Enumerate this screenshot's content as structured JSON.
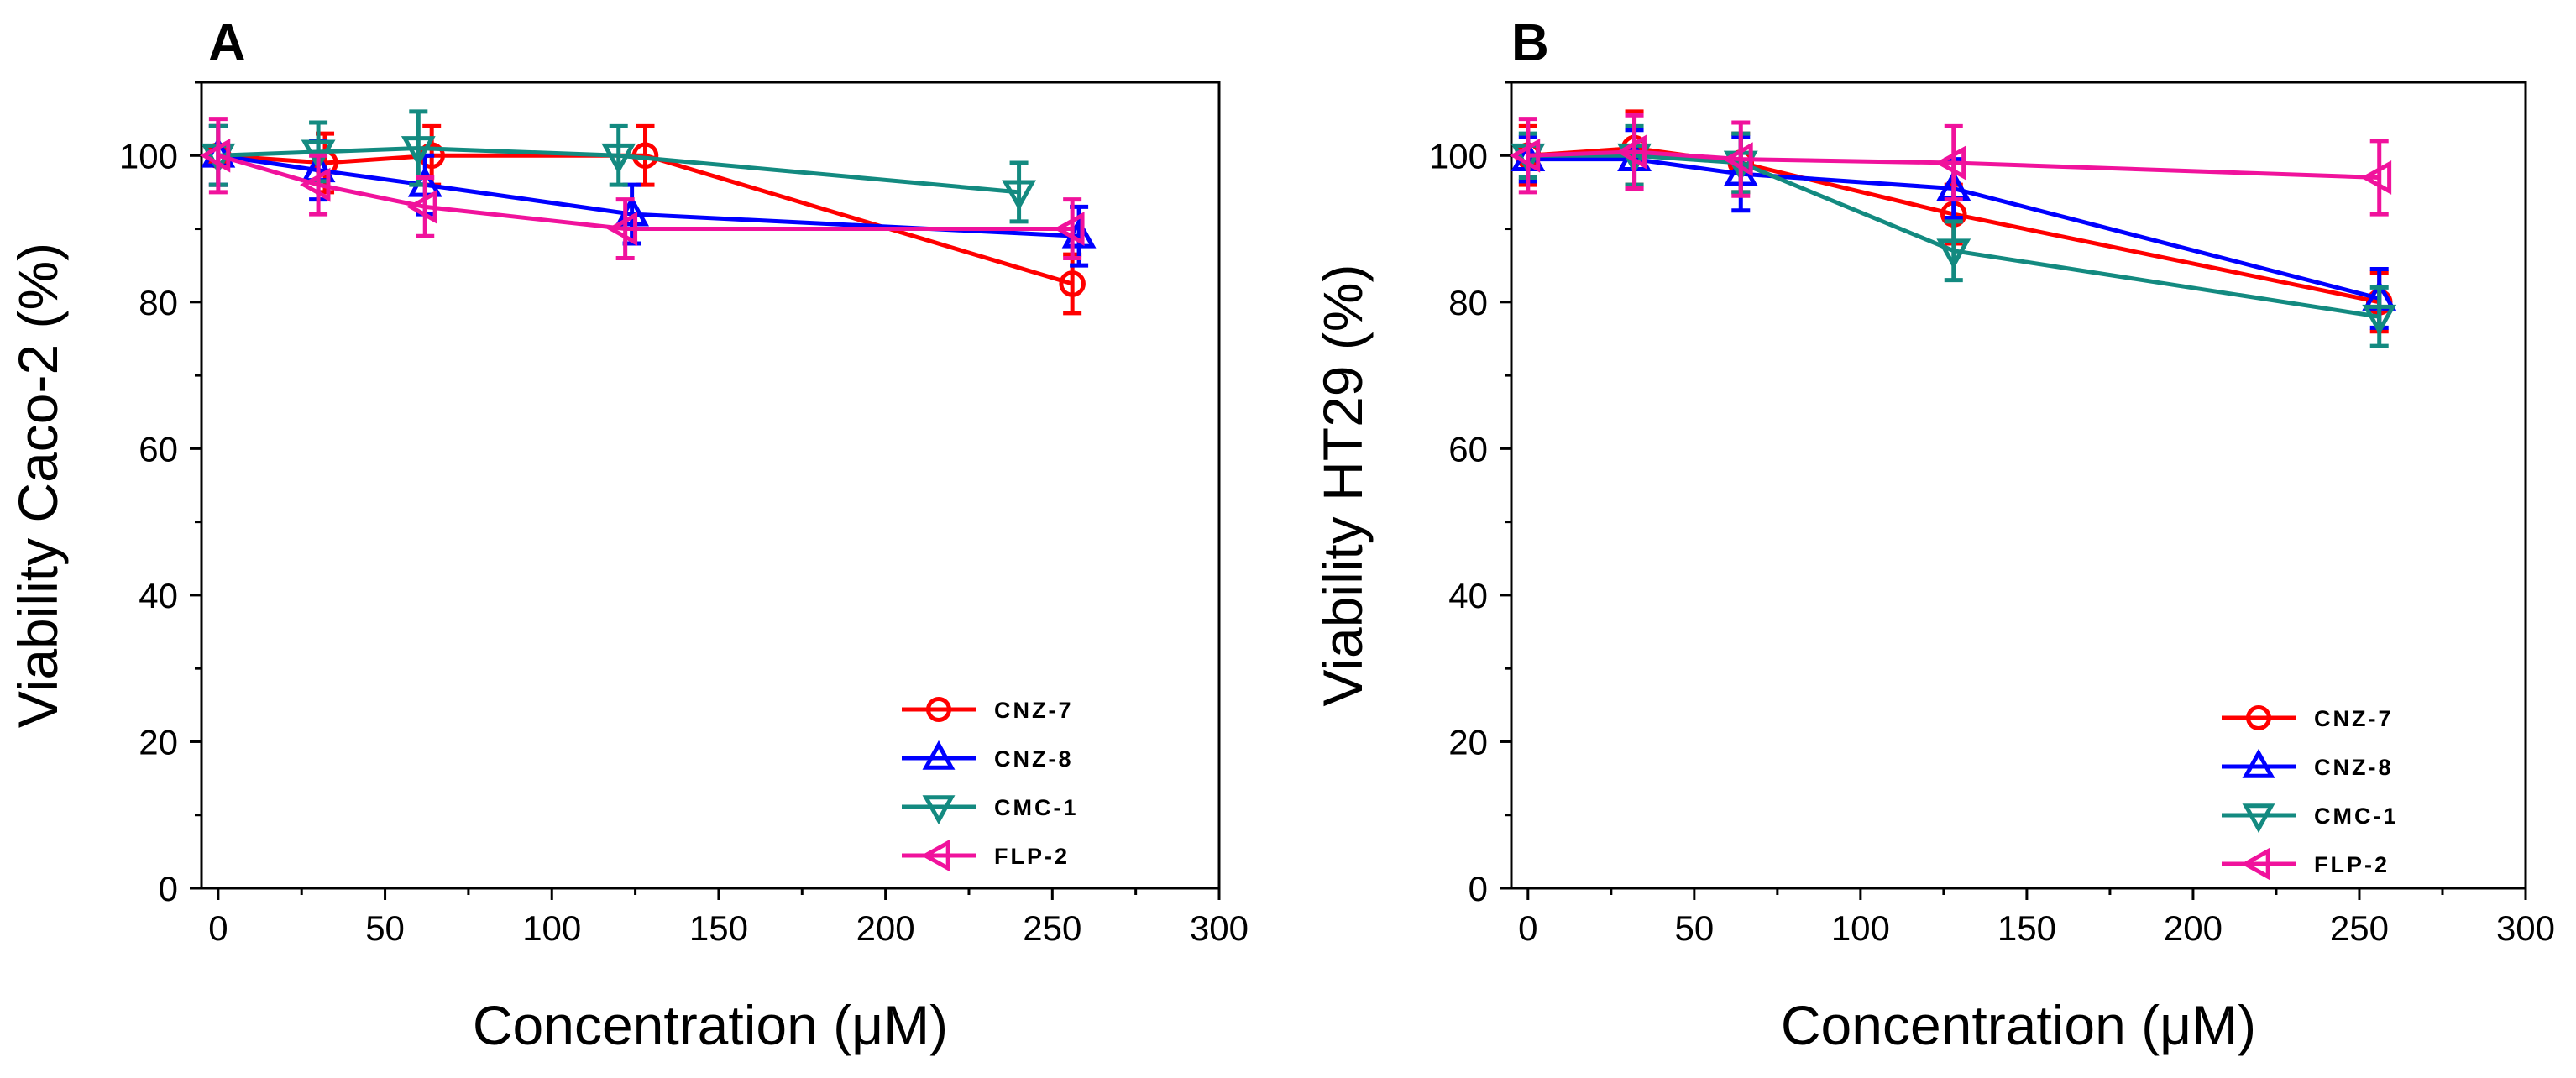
{
  "chart_data": [
    {
      "type": "line",
      "panel_label": "A",
      "title": "",
      "xlabel": "Concentration (μM)",
      "ylabel": "Viability Caco-2 (%)",
      "xlim": [
        -5,
        300
      ],
      "ylim": [
        0,
        110
      ],
      "xticks": [
        0,
        50,
        100,
        150,
        200,
        250,
        300
      ],
      "yticks": [
        0,
        20,
        40,
        60,
        80,
        100
      ],
      "legend_position": "bottom-right",
      "series": [
        {
          "name": "CNZ-7",
          "color": "#ff0000",
          "marker": "circle",
          "x": [
            0,
            32,
            64,
            128,
            256
          ],
          "y": [
            100,
            99,
            100,
            100,
            82.5
          ],
          "err": [
            4,
            4,
            4,
            4,
            4
          ]
        },
        {
          "name": "CNZ-8",
          "color": "#0000ff",
          "marker": "triangle-up",
          "x": [
            0,
            30,
            62,
            124,
            258
          ],
          "y": [
            100,
            98,
            96,
            92,
            89
          ],
          "err": [
            4,
            4,
            4,
            4,
            4
          ]
        },
        {
          "name": "CMC-1",
          "color": "#138a80",
          "marker": "triangle-down",
          "x": [
            0,
            30,
            60,
            120,
            240
          ],
          "y": [
            100,
            100.5,
            101,
            100,
            95
          ],
          "err": [
            4,
            4,
            5,
            4,
            4
          ]
        },
        {
          "name": "FLP-2",
          "color": "#f0129c",
          "marker": "triangle-left",
          "x": [
            0,
            30,
            62,
            122,
            256
          ],
          "y": [
            100,
            96,
            93,
            90,
            90
          ],
          "err": [
            5,
            4,
            4,
            4,
            4
          ]
        }
      ]
    },
    {
      "type": "line",
      "panel_label": "B",
      "title": "",
      "xlabel": "Concentration (μM)",
      "ylabel": "Viability HT29 (%)",
      "xlim": [
        -5,
        300
      ],
      "ylim": [
        0,
        110
      ],
      "xticks": [
        0,
        50,
        100,
        150,
        200,
        250,
        300
      ],
      "yticks": [
        0,
        20,
        40,
        60,
        80,
        100
      ],
      "legend_position": "bottom-right",
      "series": [
        {
          "name": "CNZ-7",
          "color": "#ff0000",
          "marker": "circle",
          "x": [
            0,
            32,
            64,
            128,
            256
          ],
          "y": [
            100,
            101,
            99,
            92,
            80
          ],
          "err": [
            4,
            5,
            4,
            4,
            4
          ]
        },
        {
          "name": "CNZ-8",
          "color": "#0000ff",
          "marker": "triangle-up",
          "x": [
            0,
            32,
            64,
            128,
            256
          ],
          "y": [
            99.5,
            99.5,
            97.5,
            95.5,
            80.5
          ],
          "err": [
            3,
            4,
            5,
            4,
            4
          ]
        },
        {
          "name": "CMC-1",
          "color": "#138a80",
          "marker": "triangle-down",
          "x": [
            0,
            32,
            64,
            128,
            256
          ],
          "y": [
            100,
            100,
            99,
            87,
            78
          ],
          "err": [
            3,
            4,
            4,
            4,
            4
          ]
        },
        {
          "name": "FLP-2",
          "color": "#f0129c",
          "marker": "triangle-left",
          "x": [
            0,
            32,
            64,
            128,
            256
          ],
          "y": [
            100,
            100.5,
            99.5,
            99,
            97
          ],
          "err": [
            5,
            5,
            5,
            5,
            5
          ]
        }
      ]
    }
  ]
}
